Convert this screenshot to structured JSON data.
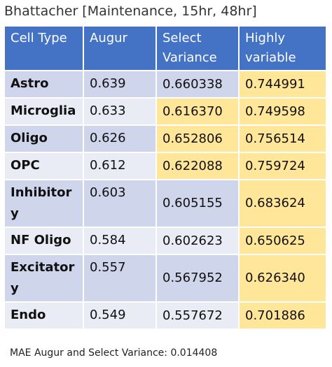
{
  "title": "Bhattacher [Maintenance, 15hr, 48hr]",
  "table": {
    "header": [
      "Cell Type",
      "Augur",
      "Select Variance",
      "Highly variable"
    ],
    "rows": [
      [
        "Astro",
        "0.639",
        "0.660338",
        "0.744991"
      ],
      [
        "Microglia",
        "0.633",
        "0.616370",
        "0.749598"
      ],
      [
        "Oligo",
        "0.626",
        "0.652806",
        "0.756514"
      ],
      [
        "OPC",
        "0.612",
        "0.622088",
        "0.759724"
      ],
      [
        "Inhibitory",
        "0.603",
        "0.605155",
        "0.683624"
      ],
      [
        "NF Oligo",
        "0.584",
        "0.602623",
        "0.650625"
      ],
      [
        "Excitatory",
        "0.557",
        "0.567952",
        "0.626340"
      ],
      [
        "Endo",
        "0.549",
        "0.557672",
        "0.701886"
      ]
    ]
  },
  "footer": "MAE Augur and Select Variance: 0.014408"
}
